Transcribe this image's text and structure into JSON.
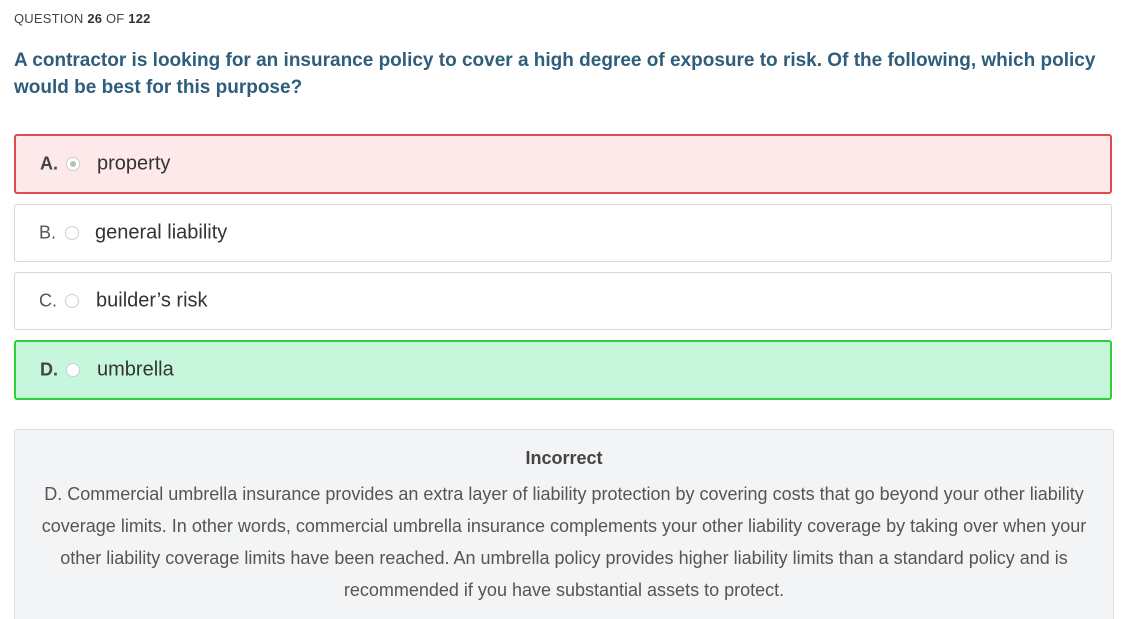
{
  "header": {
    "counter_prefix": "QUESTION",
    "current": "26",
    "of_label": "OF",
    "total": "122"
  },
  "question": {
    "text": "A contractor is looking for an insurance policy to cover a high degree of exposure to risk. Of the following, which policy would be best for this purpose?"
  },
  "options": [
    {
      "letter": "A.",
      "text": "property",
      "state": "selected-incorrect"
    },
    {
      "letter": "B.",
      "text": "general liability",
      "state": "default"
    },
    {
      "letter": "C.",
      "text": "builder’s risk",
      "state": "default"
    },
    {
      "letter": "D.",
      "text": "umbrella",
      "state": "correct"
    }
  ],
  "feedback": {
    "title": "Incorrect",
    "explanation": "D. Commercial umbrella insurance provides an extra layer of liability protection by covering costs that go beyond your other liability coverage limits. In other words, commercial umbrella insurance complements your other liability coverage by taking over when your other liability coverage limits have been reached. An umbrella policy provides higher liability limits than a standard policy and is recommended if you have substantial assets to protect."
  },
  "colors": {
    "question_text": "#2f5d7c",
    "incorrect_bg": "#fde9e9",
    "incorrect_border": "#e0494f",
    "correct_bg": "#c6f7dc",
    "correct_border": "#2fcf3a",
    "feedback_bg": "#f3f4f5"
  }
}
